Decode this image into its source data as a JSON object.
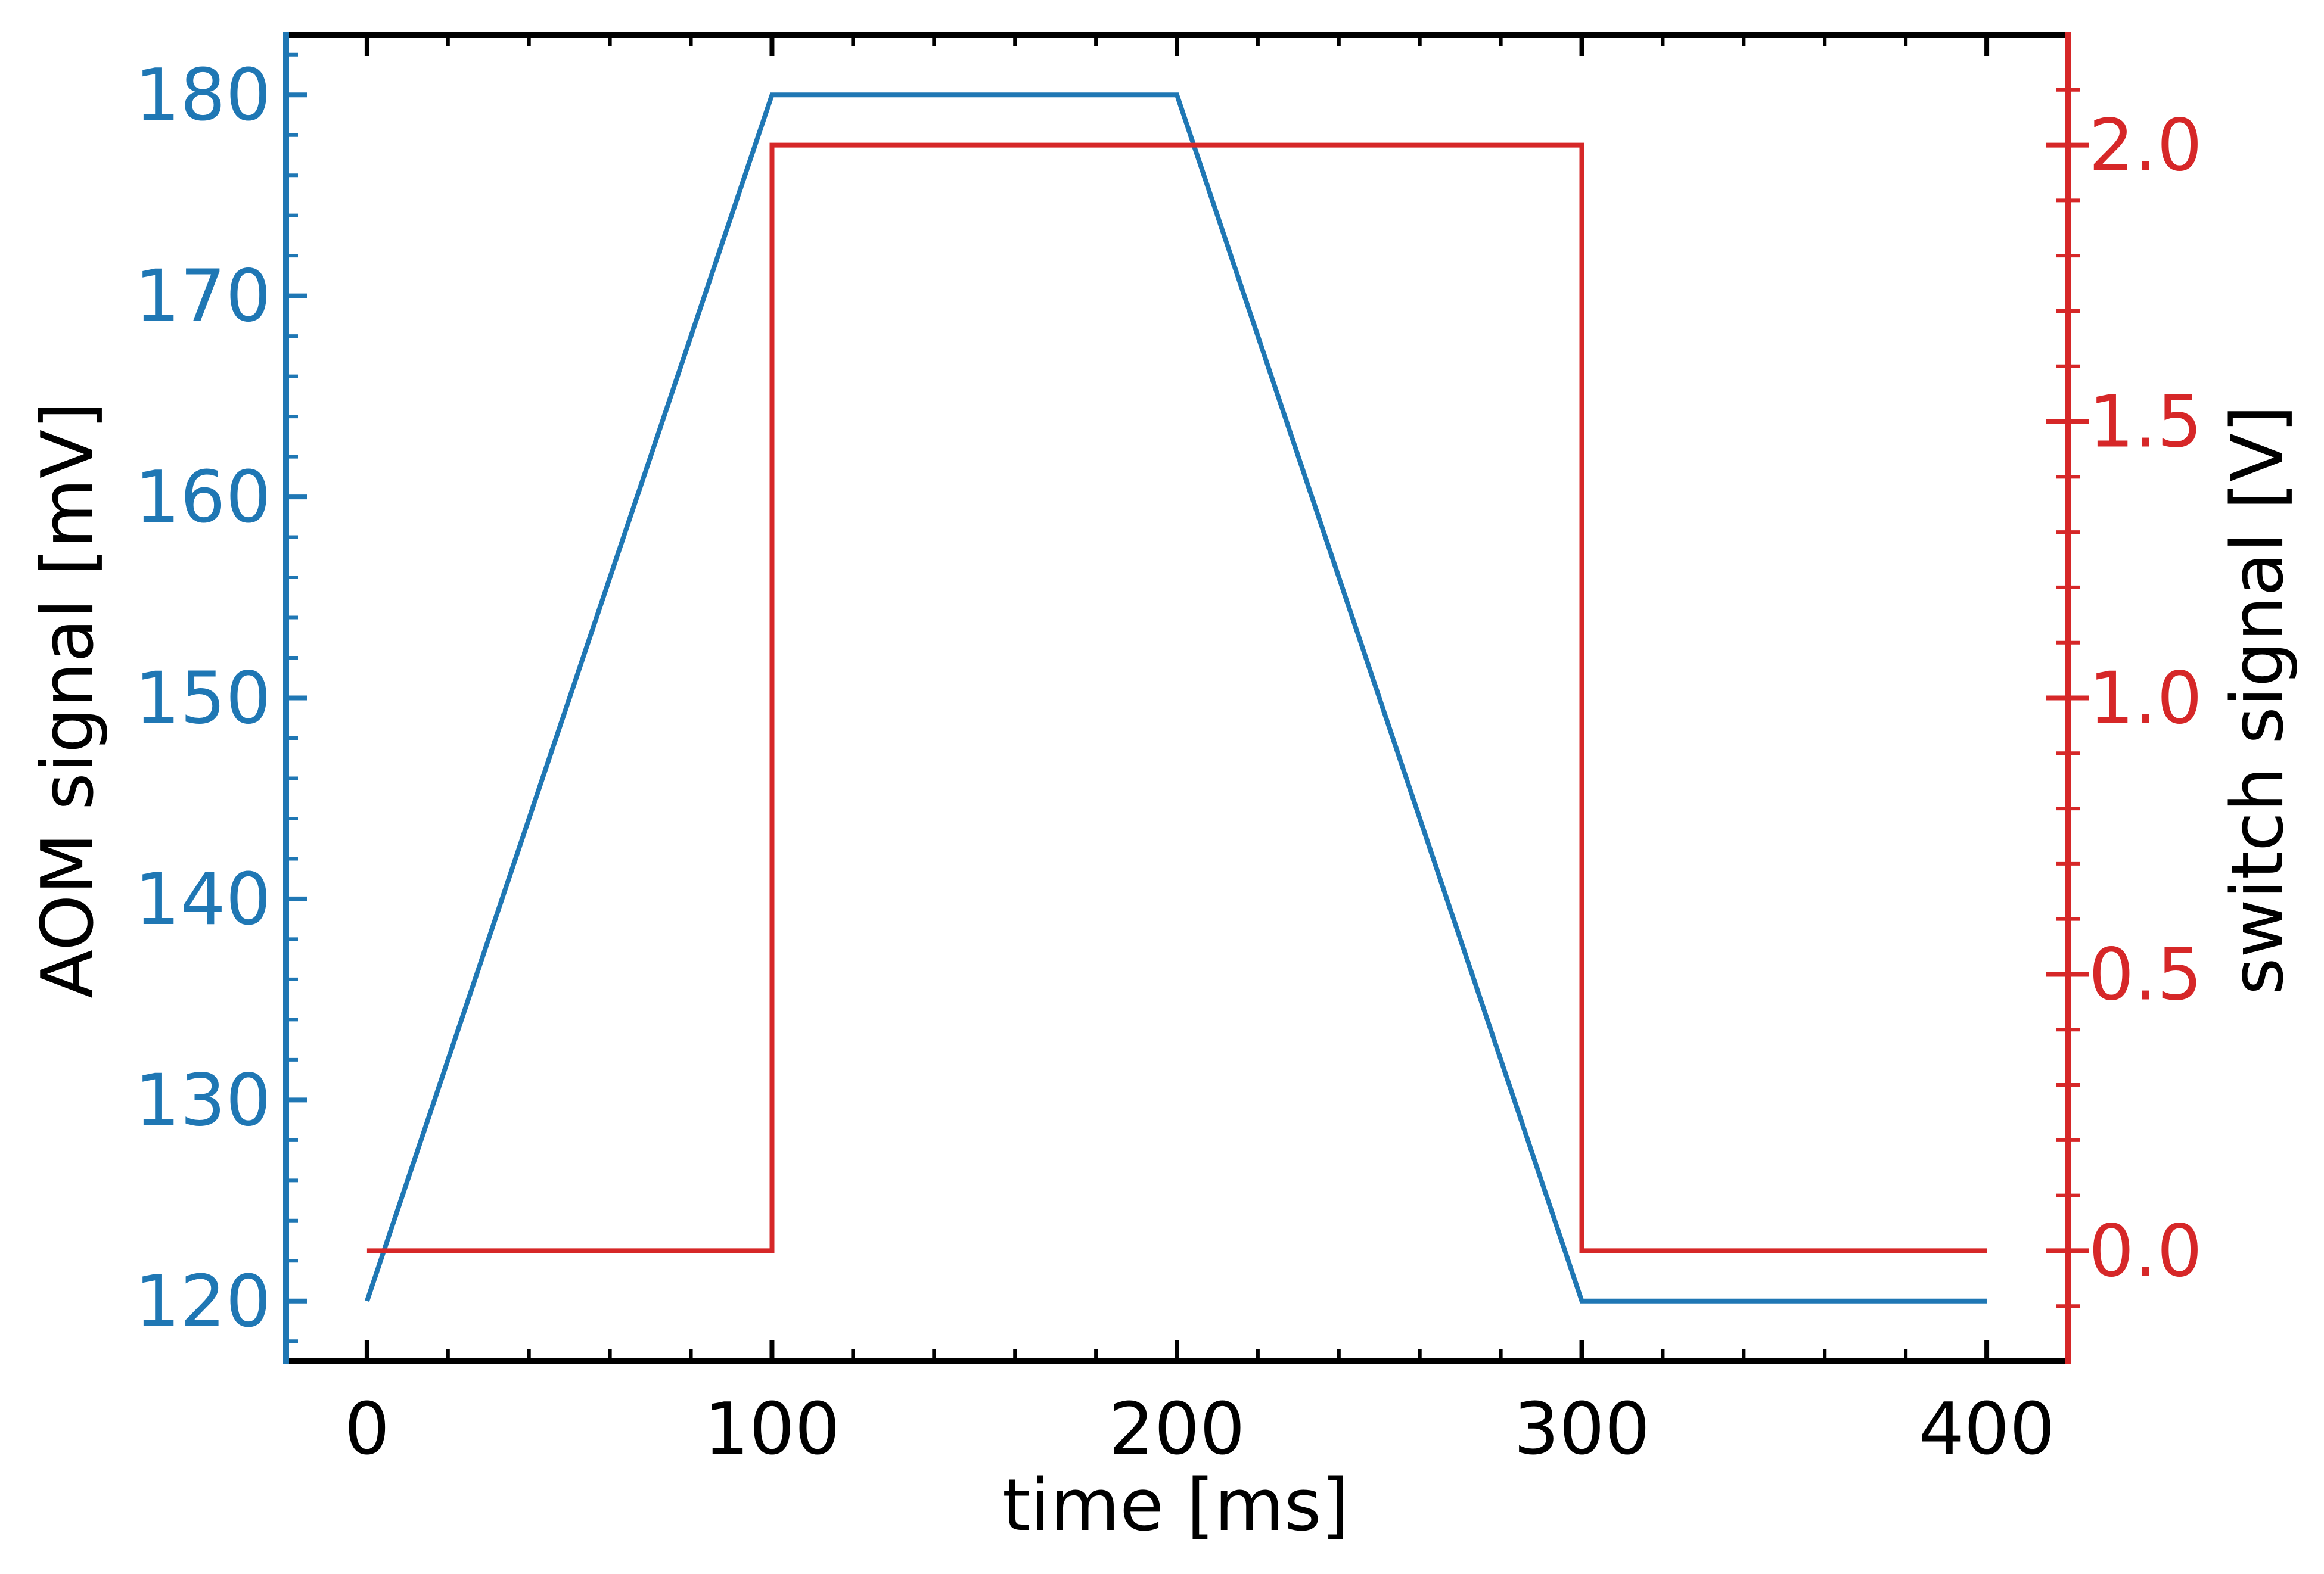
{
  "chart_data": {
    "type": "line",
    "xlabel": "time [ms]",
    "ylabel_left": "AOM signal [mV]",
    "ylabel_right": "switch signal [V]",
    "xlim": [
      -20,
      420
    ],
    "ylim_left": [
      117,
      183
    ],
    "ylim_right": [
      -0.2,
      2.2
    ],
    "x_ticks": [
      0,
      100,
      200,
      300,
      400
    ],
    "y_left_ticks": [
      120,
      130,
      140,
      150,
      160,
      170,
      180
    ],
    "y_right_ticks": [
      0.0,
      0.5,
      1.0,
      1.5,
      2.0
    ],
    "x_tick_labels": [
      "0",
      "100",
      "200",
      "300",
      "400"
    ],
    "y_left_tick_labels": [
      "120",
      "130",
      "140",
      "150",
      "160",
      "170",
      "180"
    ],
    "y_right_tick_labels": [
      "0.0",
      "0.5",
      "1.0",
      "1.5",
      "2.0"
    ],
    "grid": false,
    "series": [
      {
        "axis": "left",
        "color": "#1f77b4",
        "x": [
          0,
          100,
          200,
          300,
          400
        ],
        "y": [
          120,
          180,
          180,
          120,
          120
        ]
      },
      {
        "axis": "right",
        "color": "#d62728",
        "x": [
          0,
          100,
          100,
          300,
          300,
          400
        ],
        "y": [
          0,
          0,
          2,
          2,
          0,
          0
        ]
      }
    ]
  }
}
